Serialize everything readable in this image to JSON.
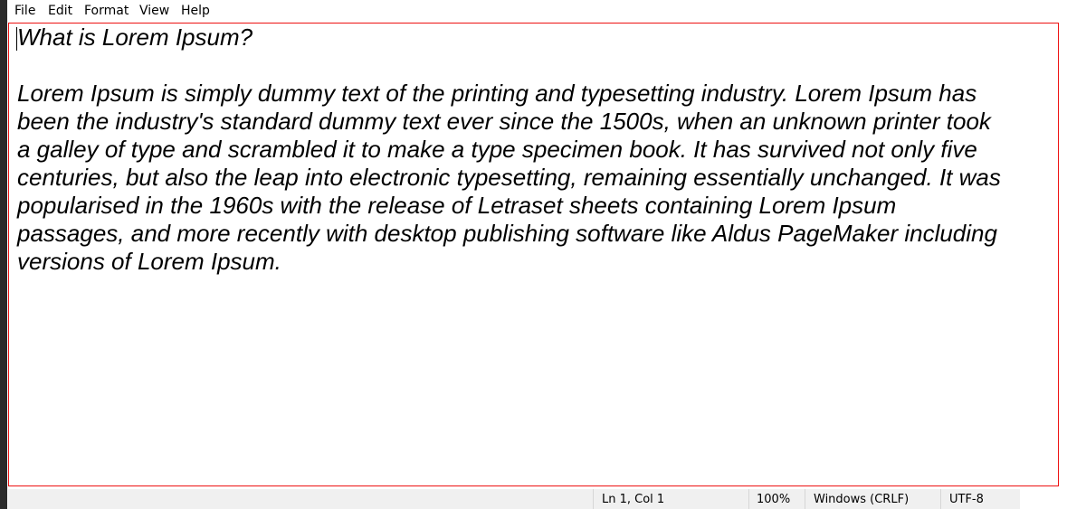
{
  "menu": [
    "File",
    "Edit",
    "Format",
    "View",
    "Help"
  ],
  "editor": {
    "title_line": "What is Lorem Ipsum?",
    "paragraph_lines": [
      "Lorem Ipsum is simply dummy text of the printing and typesetting industry. Lorem Ipsum has",
      "been the industry's standard dummy text ever since the 1500s, when an unknown printer took",
      "a galley of type and scrambled it to make a type specimen book. It has survived not only five",
      "centuries, but also the leap into electronic typesetting, remaining essentially unchanged. It was",
      "popularised in the 1960s with the release of Letraset sheets containing Lorem Ipsum",
      "passages, and more recently with desktop publishing software like Aldus PageMaker including",
      "versions of Lorem Ipsum."
    ]
  },
  "status_bar": {
    "position": "Ln 1, Col 1",
    "zoom": "100%",
    "line_ending": "Windows (CRLF)",
    "encoding": "UTF-8"
  }
}
